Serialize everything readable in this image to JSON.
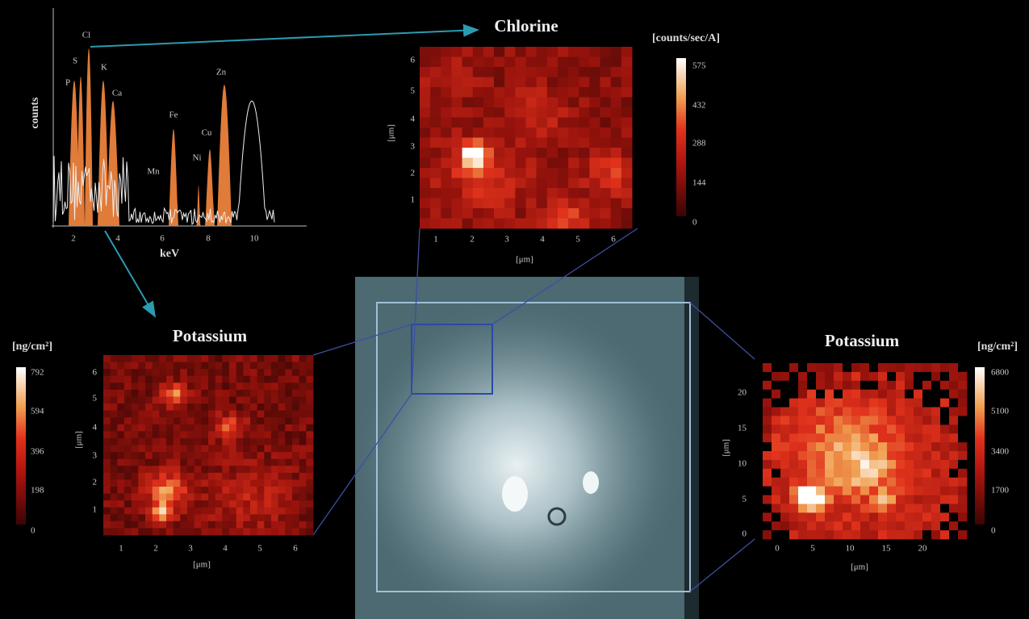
{
  "spectrum": {
    "peak_labels": [
      "P",
      "S",
      "Cl",
      "K",
      "Ca",
      "Mn",
      "Fe",
      "Ni",
      "Cu",
      "Zn"
    ],
    "y_label": "counts",
    "x_label": "keV",
    "x_ticks": [
      "2",
      "4",
      "6",
      "8",
      "10"
    ]
  },
  "chlorine_map": {
    "title": "Chlorine",
    "unit": "[counts/sec/A]",
    "colorbar_ticks": [
      "575",
      "432",
      "288",
      "144",
      "0"
    ],
    "x_ticks": [
      "1",
      "2",
      "3",
      "4",
      "5",
      "6"
    ],
    "y_ticks": [
      "6",
      "5",
      "4",
      "3",
      "2",
      "1"
    ],
    "x_label": "[μm]",
    "y_label": "[μm]"
  },
  "potassium_map_left": {
    "title": "Potassium",
    "unit": "[ng/cm²]",
    "colorbar_ticks": [
      "792",
      "594",
      "396",
      "198",
      "0"
    ],
    "x_ticks": [
      "1",
      "2",
      "3",
      "4",
      "5",
      "6"
    ],
    "y_ticks": [
      "6",
      "5",
      "4",
      "3",
      "2",
      "1"
    ],
    "x_label": "[μm]",
    "y_label": "[μm]"
  },
  "potassium_map_right": {
    "title": "Potassium",
    "unit": "[ng/cm²]",
    "colorbar_ticks": [
      "6800",
      "5100",
      "3400",
      "1700",
      "0"
    ],
    "x_ticks": [
      "0",
      "5",
      "10",
      "15",
      "20"
    ],
    "y_ticks": [
      "20",
      "15",
      "10",
      "5",
      "0"
    ],
    "x_label": "[μm]",
    "y_label": "[μm]"
  }
}
